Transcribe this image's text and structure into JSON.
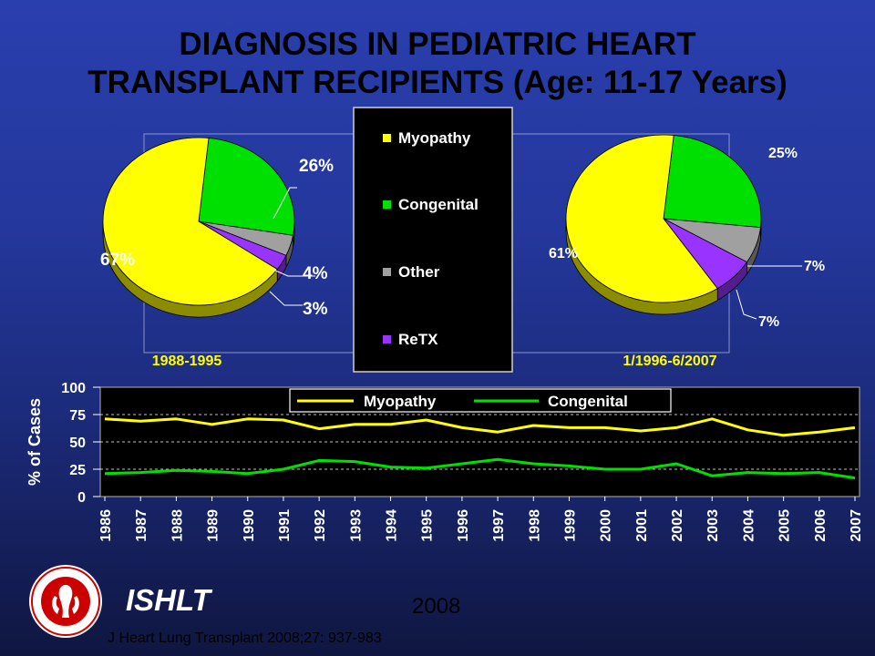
{
  "page": {
    "title_line1": "DIAGNOSIS IN PEDIATRIC HEART",
    "title_line2": "TRANSPLANT RECIPIENTS (Age: 11-17 Years)",
    "org": "ISHLT",
    "year": "2008",
    "citation": "J Heart Lung Transplant 2008;27: 937-983",
    "logo_icon": "ishlt-logo-icon"
  },
  "colors": {
    "myopathy": "#ffff00",
    "congenital": "#00e000",
    "other": "#a0a0a0",
    "retx": "#9933ff",
    "background": "#24379c"
  },
  "pie_legend": [
    "Myopathy",
    "Congenital",
    "Other",
    "ReTX"
  ],
  "chart_data": [
    {
      "type": "pie",
      "title": "1988-1995",
      "categories": [
        "Myopathy",
        "Congenital",
        "Other",
        "ReTX"
      ],
      "values": [
        67,
        26,
        4,
        3
      ],
      "labels": [
        "67%",
        "26%",
        "4%",
        "3%"
      ]
    },
    {
      "type": "pie",
      "title": "1/1996-6/2007",
      "categories": [
        "Myopathy",
        "Congenital",
        "Other",
        "ReTX"
      ],
      "values": [
        61,
        25,
        7,
        7
      ],
      "labels": [
        "61%",
        "25%",
        "7%",
        "7%"
      ]
    },
    {
      "type": "line",
      "ylabel": "% of Cases",
      "ylim": [
        0,
        100
      ],
      "yticks": [
        "100",
        "75",
        "50",
        "25",
        "0"
      ],
      "grid": true,
      "legend": "top",
      "x": [
        "1986",
        "1987",
        "1988",
        "1989",
        "1990",
        "1991",
        "1992",
        "1993",
        "1994",
        "1995",
        "1996",
        "1997",
        "1998",
        "1999",
        "2000",
        "2001",
        "2002",
        "2003",
        "2004",
        "2005",
        "2006",
        "2007"
      ],
      "series": [
        {
          "name": "Myopathy",
          "values": [
            71,
            69,
            71,
            66,
            71,
            70,
            62,
            66,
            66,
            70,
            63,
            59,
            65,
            63,
            63,
            60,
            63,
            71,
            61,
            56,
            59,
            63
          ]
        },
        {
          "name": "Congenital",
          "values": [
            21,
            22,
            24,
            23,
            21,
            25,
            33,
            32,
            27,
            26,
            30,
            34,
            30,
            28,
            25,
            25,
            30,
            19,
            22,
            21,
            22,
            17
          ]
        }
      ]
    }
  ]
}
